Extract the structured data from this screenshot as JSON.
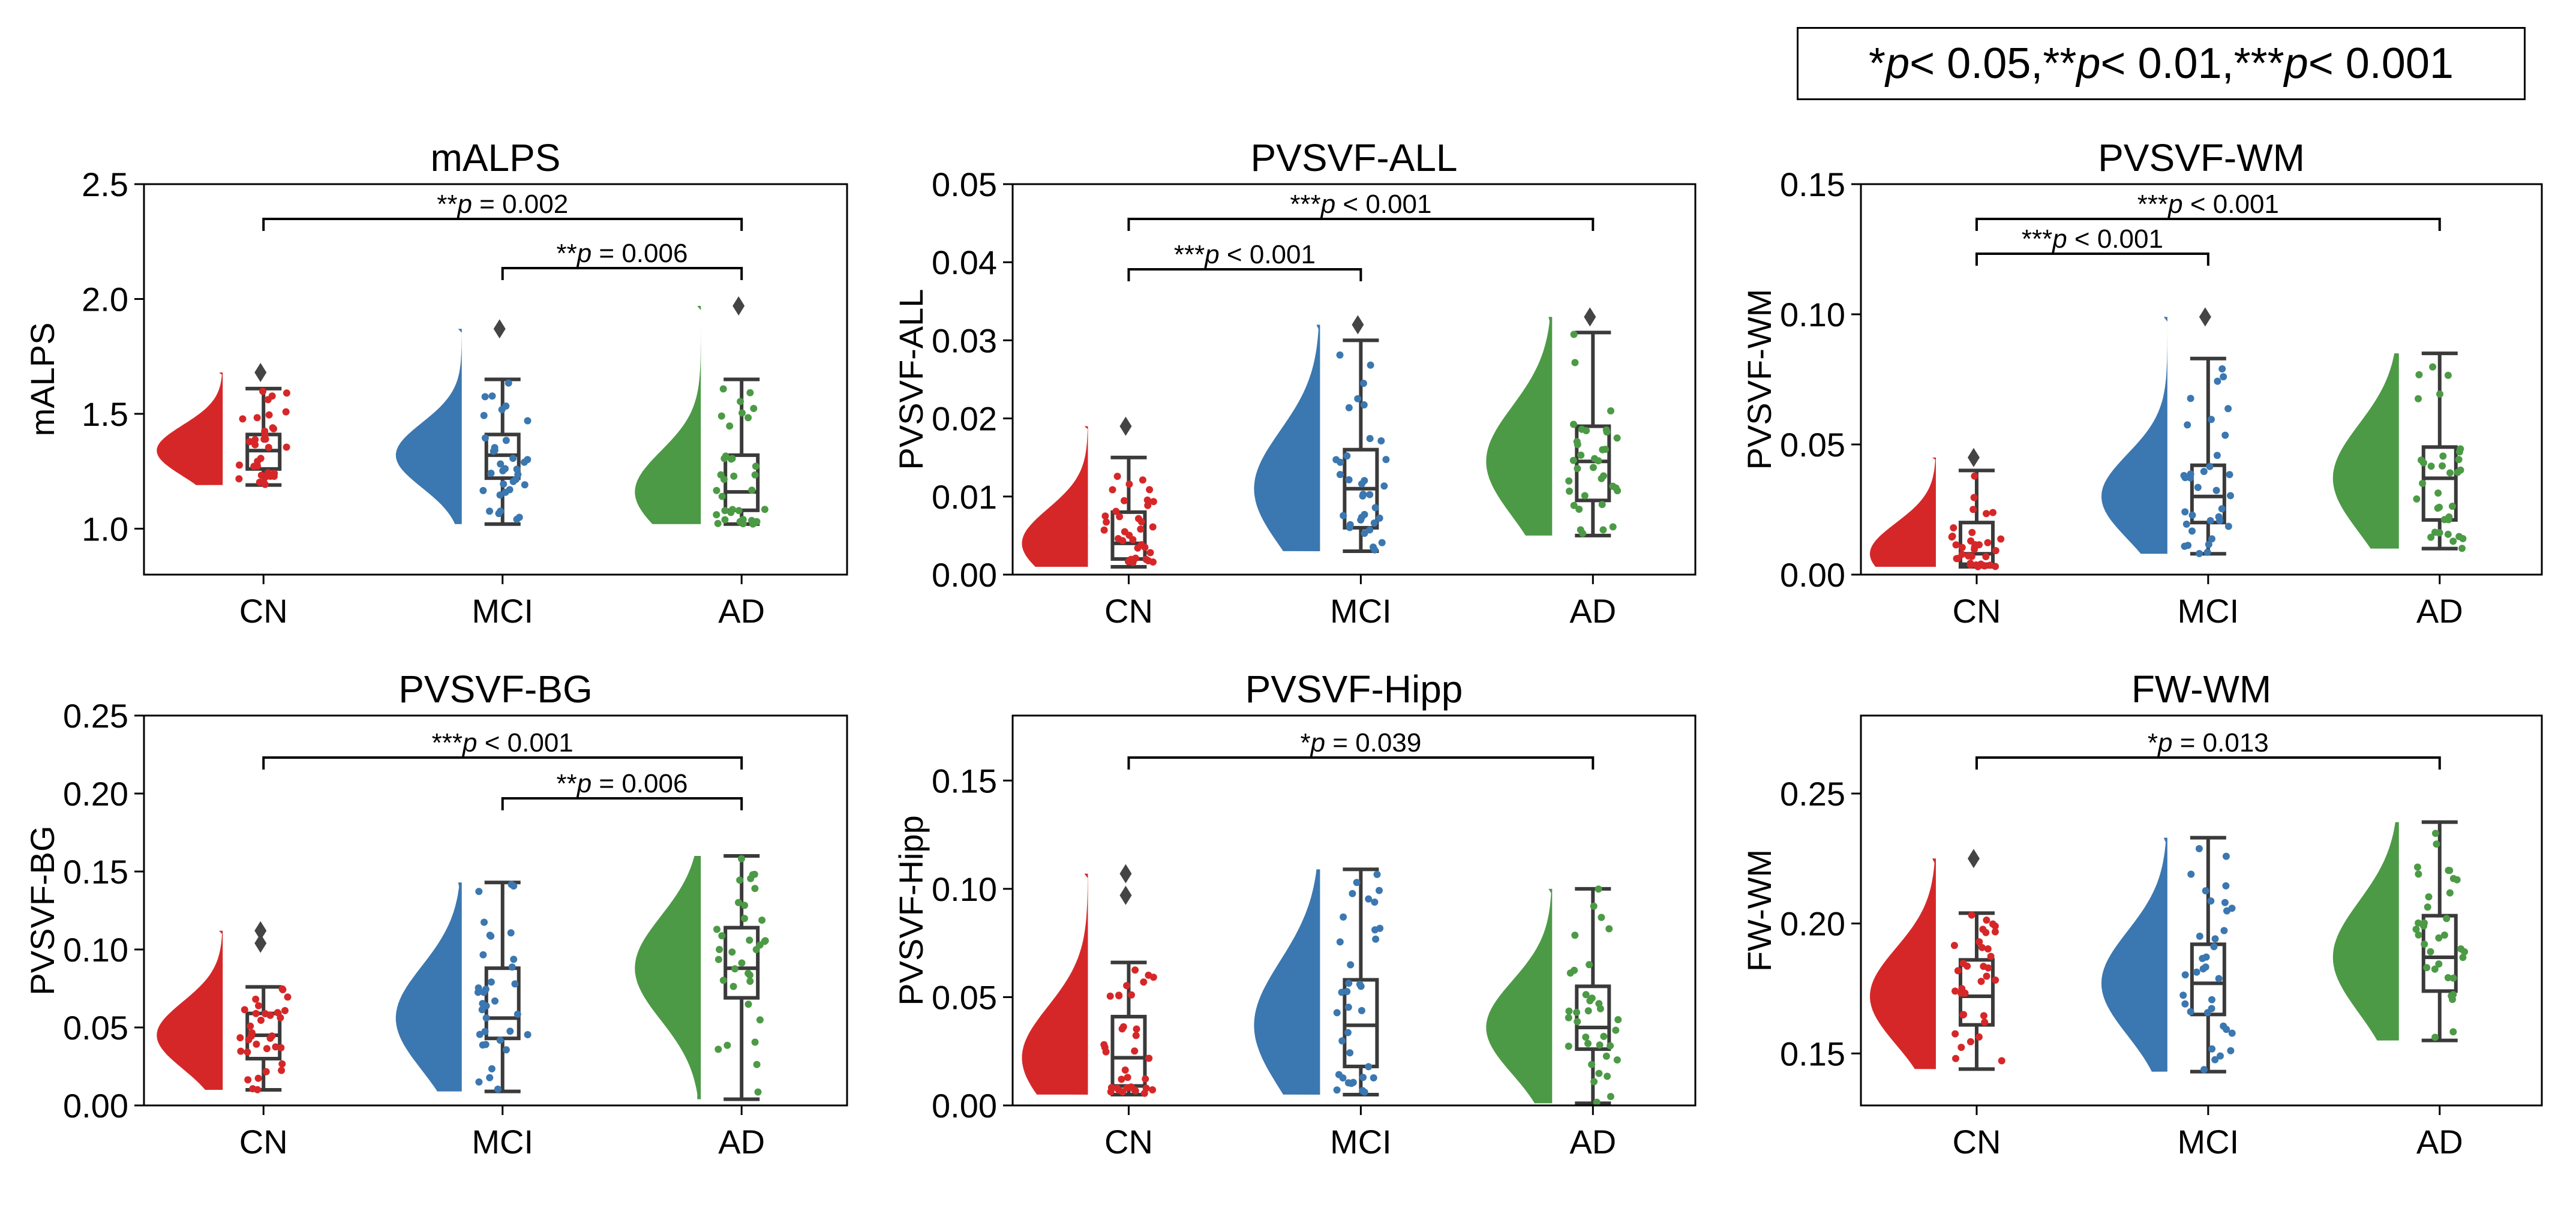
{
  "significance_legend": {
    "s1_star": "* ",
    "s1_p": "p",
    "s1_rest": " < 0.05, ",
    "s2_star": "** ",
    "s2_p": "p",
    "s2_rest": " < 0.01, ",
    "s3_star": "***",
    "s3_p": "p",
    "s3_rest": " < 0.001"
  },
  "colors": {
    "CN": "#d62728",
    "MCI": "#3b77b0",
    "AD": "#4c9a45",
    "box": "#3a3a3a"
  },
  "chart_data": [
    {
      "type": "raincloud",
      "title": "mALPS",
      "ylabel": "mALPS",
      "categories": [
        "CN",
        "MCI",
        "AD"
      ],
      "ylim": [
        0.8,
        2.5
      ],
      "yticks": [
        "1.0",
        "1.5",
        "2.0",
        "2.5"
      ],
      "ytick_values": [
        1.0,
        1.5,
        2.0,
        2.5
      ],
      "boxes": [
        {
          "group": "CN",
          "whislo": 1.19,
          "q1": 1.26,
          "med": 1.34,
          "q3": 1.41,
          "whishi": 1.61,
          "outliers": [
            1.68
          ]
        },
        {
          "group": "MCI",
          "whislo": 1.02,
          "q1": 1.22,
          "med": 1.32,
          "q3": 1.41,
          "whishi": 1.65,
          "outliers": [
            1.87
          ]
        },
        {
          "group": "AD",
          "whislo": 1.02,
          "q1": 1.08,
          "med": 1.16,
          "q3": 1.32,
          "whishi": 1.65,
          "outliers": [
            1.97
          ]
        }
      ],
      "comparisons": [
        {
          "from": "CN",
          "to": "AD",
          "stars": "**",
          "p_label": "p",
          "value": " = 0.002"
        },
        {
          "from": "MCI",
          "to": "AD",
          "stars": "**",
          "p_label": "p",
          "value": " = 0.006"
        }
      ]
    },
    {
      "type": "raincloud",
      "title": "PVSVF-ALL",
      "ylabel": "PVSVF-ALL",
      "categories": [
        "CN",
        "MCI",
        "AD"
      ],
      "ylim": [
        0.0,
        0.05
      ],
      "yticks": [
        "0.00",
        "0.01",
        "0.02",
        "0.03",
        "0.04",
        "0.05"
      ],
      "ytick_values": [
        0.0,
        0.01,
        0.02,
        0.03,
        0.04,
        0.05
      ],
      "boxes": [
        {
          "group": "CN",
          "whislo": 0.001,
          "q1": 0.002,
          "med": 0.004,
          "q3": 0.008,
          "whishi": 0.015,
          "outliers": [
            0.019
          ]
        },
        {
          "group": "MCI",
          "whislo": 0.003,
          "q1": 0.006,
          "med": 0.011,
          "q3": 0.016,
          "whishi": 0.03,
          "outliers": [
            0.032
          ]
        },
        {
          "group": "AD",
          "whislo": 0.005,
          "q1": 0.0095,
          "med": 0.0145,
          "q3": 0.019,
          "whishi": 0.031,
          "outliers": [
            0.033
          ]
        }
      ],
      "comparisons": [
        {
          "from": "CN",
          "to": "AD",
          "stars": "***",
          "p_label": "p",
          "value": " < 0.001"
        },
        {
          "from": "CN",
          "to": "MCI",
          "stars": "***",
          "p_label": "p",
          "value": " < 0.001"
        }
      ]
    },
    {
      "type": "raincloud",
      "title": "PVSVF-WM",
      "ylabel": "PVSVF-WM",
      "categories": [
        "CN",
        "MCI",
        "AD"
      ],
      "ylim": [
        0.0,
        0.15
      ],
      "yticks": [
        "0.00",
        "0.05",
        "0.10",
        "0.15"
      ],
      "ytick_values": [
        0.0,
        0.05,
        0.1,
        0.15
      ],
      "boxes": [
        {
          "group": "CN",
          "whislo": 0.003,
          "q1": 0.004,
          "med": 0.008,
          "q3": 0.02,
          "whishi": 0.04,
          "outliers": [
            0.045
          ]
        },
        {
          "group": "MCI",
          "whislo": 0.008,
          "q1": 0.02,
          "med": 0.03,
          "q3": 0.042,
          "whishi": 0.083,
          "outliers": [
            0.099
          ]
        },
        {
          "group": "AD",
          "whislo": 0.01,
          "q1": 0.021,
          "med": 0.037,
          "q3": 0.049,
          "whishi": 0.085,
          "outliers": []
        }
      ],
      "comparisons": [
        {
          "from": "CN",
          "to": "AD",
          "stars": "***",
          "p_label": "p",
          "value": " < 0.001"
        },
        {
          "from": "CN",
          "to": "MCI",
          "stars": "***",
          "p_label": "p",
          "value": " < 0.001"
        }
      ]
    },
    {
      "type": "raincloud",
      "title": "PVSVF-BG",
      "ylabel": "PVSVF-BG",
      "categories": [
        "CN",
        "MCI",
        "AD"
      ],
      "ylim": [
        0.0,
        0.25
      ],
      "yticks": [
        "0.00",
        "0.05",
        "0.10",
        "0.15",
        "0.20",
        "0.25"
      ],
      "ytick_values": [
        0.0,
        0.05,
        0.1,
        0.15,
        0.2,
        0.25
      ],
      "boxes": [
        {
          "group": "CN",
          "whislo": 0.01,
          "q1": 0.03,
          "med": 0.045,
          "q3": 0.059,
          "whishi": 0.076,
          "outliers": [
            0.104,
            0.112
          ]
        },
        {
          "group": "MCI",
          "whislo": 0.009,
          "q1": 0.043,
          "med": 0.056,
          "q3": 0.088,
          "whishi": 0.143,
          "outliers": []
        },
        {
          "group": "AD",
          "whislo": 0.004,
          "q1": 0.069,
          "med": 0.088,
          "q3": 0.114,
          "whishi": 0.16,
          "outliers": []
        }
      ],
      "comparisons": [
        {
          "from": "CN",
          "to": "AD",
          "stars": "***",
          "p_label": "p",
          "value": " < 0.001"
        },
        {
          "from": "MCI",
          "to": "AD",
          "stars": "**",
          "p_label": "p",
          "value": " = 0.006"
        }
      ]
    },
    {
      "type": "raincloud",
      "title": "PVSVF-Hipp",
      "ylabel": "PVSVF-Hipp",
      "categories": [
        "CN",
        "MCI",
        "AD"
      ],
      "ylim": [
        0.0,
        0.18
      ],
      "yticks": [
        "0.00",
        "0.05",
        "0.10",
        "0.15"
      ],
      "ytick_values": [
        0.0,
        0.05,
        0.1,
        0.15
      ],
      "boxes": [
        {
          "group": "CN",
          "whislo": 0.005,
          "q1": 0.009,
          "med": 0.022,
          "q3": 0.041,
          "whishi": 0.066,
          "outliers": [
            0.097,
            0.107
          ]
        },
        {
          "group": "MCI",
          "whislo": 0.005,
          "q1": 0.018,
          "med": 0.037,
          "q3": 0.058,
          "whishi": 0.109,
          "outliers": []
        },
        {
          "group": "AD",
          "whislo": 0.001,
          "q1": 0.026,
          "med": 0.036,
          "q3": 0.055,
          "whishi": 0.1,
          "outliers": []
        }
      ],
      "comparisons": [
        {
          "from": "CN",
          "to": "AD",
          "stars": "*",
          "p_label": "p",
          "value": " = 0.039"
        }
      ]
    },
    {
      "type": "raincloud",
      "title": "FW-WM",
      "ylabel": "FW-WM",
      "categories": [
        "CN",
        "MCI",
        "AD"
      ],
      "ylim": [
        0.13,
        0.28
      ],
      "yticks": [
        "0.15",
        "0.20",
        "0.25"
      ],
      "ytick_values": [
        0.15,
        0.2,
        0.25
      ],
      "boxes": [
        {
          "group": "CN",
          "whislo": 0.144,
          "q1": 0.161,
          "med": 0.172,
          "q3": 0.186,
          "whishi": 0.204,
          "outliers": [
            0.225
          ]
        },
        {
          "group": "MCI",
          "whislo": 0.143,
          "q1": 0.165,
          "med": 0.177,
          "q3": 0.192,
          "whishi": 0.233,
          "outliers": []
        },
        {
          "group": "AD",
          "whislo": 0.155,
          "q1": 0.174,
          "med": 0.187,
          "q3": 0.203,
          "whishi": 0.239,
          "outliers": []
        }
      ],
      "comparisons": [
        {
          "from": "CN",
          "to": "AD",
          "stars": "*",
          "p_label": "p",
          "value": " = 0.013"
        }
      ]
    }
  ]
}
